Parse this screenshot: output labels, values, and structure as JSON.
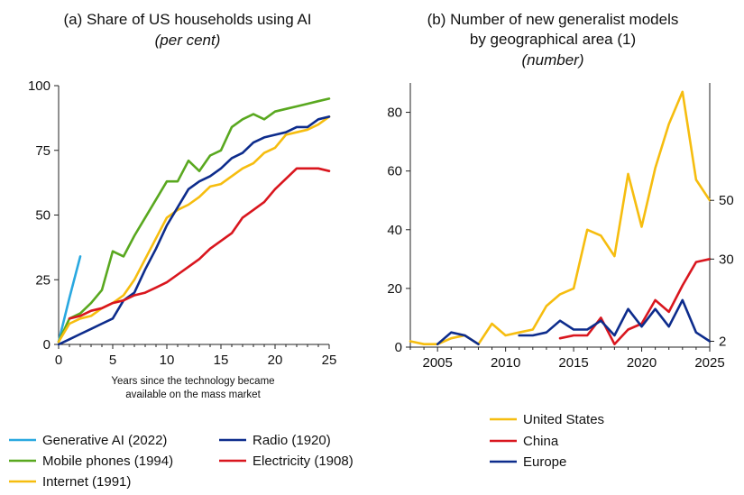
{
  "chart_data": [
    {
      "type": "line",
      "title": "(a) Share of US households using AI",
      "subtitle": "(per cent)",
      "xlabel": [
        "Years since the technology became",
        "available on the mass market"
      ],
      "xlim": [
        0,
        25
      ],
      "ylim": [
        0,
        100
      ],
      "xticks": [
        0,
        5,
        10,
        15,
        20,
        25
      ],
      "yticks": [
        0,
        25,
        50,
        75,
        100
      ],
      "legend_position": "bottom",
      "series": [
        {
          "name": "Generative AI (2022)",
          "color": "#29a8e0",
          "x": [
            0,
            1,
            2
          ],
          "y": [
            1,
            18,
            34
          ]
        },
        {
          "name": "Mobile phones (1994)",
          "color": "#59a81f",
          "x": [
            0,
            1,
            2,
            3,
            4,
            5,
            6,
            7,
            8,
            9,
            10,
            11,
            12,
            13,
            14,
            15,
            16,
            17,
            18,
            19,
            20,
            21,
            22,
            23,
            24,
            25
          ],
          "y": [
            1,
            10,
            12,
            16,
            21,
            36,
            34,
            42,
            49,
            56,
            63,
            63,
            71,
            67,
            73,
            75,
            84,
            87,
            89,
            87,
            90,
            91,
            92,
            93,
            94,
            95
          ]
        },
        {
          "name": "Internet (1991)",
          "color": "#f6bd0f",
          "x": [
            0,
            1,
            2,
            3,
            4,
            5,
            6,
            7,
            8,
            9,
            10,
            11,
            12,
            13,
            14,
            15,
            16,
            17,
            18,
            19,
            20,
            21,
            22,
            23,
            24,
            25
          ],
          "y": [
            1,
            8,
            10,
            11,
            14,
            16,
            19,
            25,
            33,
            41,
            49,
            52,
            54,
            57,
            61,
            62,
            65,
            68,
            70,
            74,
            76,
            81,
            82,
            83,
            85,
            88
          ]
        },
        {
          "name": "Radio (1920)",
          "color": "#0d2c8c",
          "x": [
            0,
            1,
            2,
            3,
            4,
            5,
            6,
            7,
            8,
            9,
            10,
            11,
            12,
            13,
            14,
            15,
            16,
            17,
            18,
            19,
            20,
            21,
            22,
            23,
            24,
            25
          ],
          "y": [
            0,
            2,
            4,
            6,
            8,
            10,
            17,
            20,
            29,
            37,
            46,
            53,
            60,
            63,
            65,
            68,
            72,
            74,
            78,
            80,
            81,
            82,
            84,
            84,
            87,
            88
          ]
        },
        {
          "name": "Electricity (1908)",
          "color": "#d9161e",
          "x": [
            1,
            2,
            3,
            4,
            5,
            6,
            7,
            8,
            9,
            10,
            11,
            12,
            13,
            14,
            15,
            16,
            17,
            18,
            19,
            20,
            21,
            22,
            23,
            24,
            25
          ],
          "y": [
            10,
            11,
            13,
            14,
            16,
            17,
            19,
            20,
            22,
            24,
            27,
            30,
            33,
            37,
            40,
            43,
            49,
            52,
            55,
            60,
            64,
            68,
            68,
            68,
            67
          ]
        }
      ]
    },
    {
      "type": "line",
      "title": [
        "(b) Number of new generalist models",
        "by geographical area (1)"
      ],
      "subtitle": "(number)",
      "xlim": [
        2003,
        2025
      ],
      "ylim": [
        0,
        90
      ],
      "xticks": [
        2005,
        2010,
        2015,
        2020,
        2025
      ],
      "yticks": [
        0,
        20,
        40,
        60,
        80
      ],
      "end_labels": [
        "50",
        "30",
        "2"
      ],
      "legend_position": "bottom",
      "series": [
        {
          "name": "United States",
          "color": "#f6bd0f",
          "x": [
            2003,
            2004,
            2005,
            2006,
            2007,
            2008,
            2009,
            2010,
            2011,
            2012,
            2013,
            2014,
            2015,
            2016,
            2017,
            2018,
            2019,
            2020,
            2021,
            2022,
            2023,
            2024,
            2025
          ],
          "y": [
            2,
            1,
            1,
            3,
            4,
            1,
            8,
            4,
            5,
            6,
            14,
            18,
            20,
            40,
            38,
            31,
            59,
            41,
            61,
            76,
            87,
            57,
            50
          ]
        },
        {
          "name": "China",
          "color": "#d9161e",
          "x": [
            2014,
            2015,
            2016,
            2017,
            2018,
            2019,
            2020,
            2021,
            2022,
            2023,
            2024,
            2025
          ],
          "y": [
            3,
            4,
            4,
            10,
            1,
            6,
            8,
            16,
            12,
            21,
            29,
            30
          ]
        },
        {
          "name": "Europe",
          "color": "#0d2c8c",
          "x": [
            2005,
            2006,
            2007,
            2008,
            null,
            2011,
            2012,
            2013,
            2014,
            2015,
            2016,
            2017,
            2018,
            2019,
            2020,
            2021,
            2022,
            2023,
            2024,
            2025
          ],
          "y": [
            1,
            5,
            4,
            1,
            null,
            4,
            4,
            5,
            9,
            6,
            6,
            9,
            4,
            13,
            7,
            13,
            7,
            16,
            5,
            2
          ]
        }
      ]
    }
  ]
}
